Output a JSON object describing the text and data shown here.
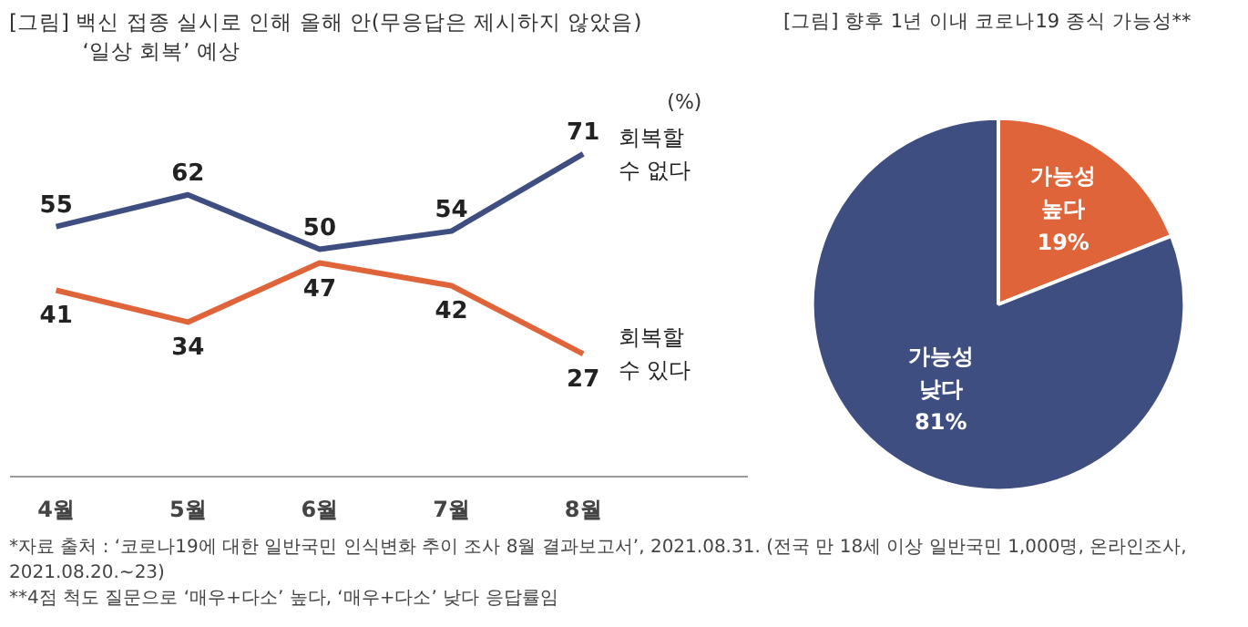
{
  "chart_data": [
    {
      "type": "line",
      "title": "[그림] 백신 접종 실시로 인해 올해 안(무응답은 제시하지 않았음)",
      "subtitle": "‘일상 회복’ 예상",
      "ylabel": "(%)",
      "categories": [
        "4월",
        "5월",
        "6월",
        "7월",
        "8월"
      ],
      "series": [
        {
          "name": "회복할\n수 없다",
          "color": "#3f4e80",
          "values": [
            55,
            62,
            50,
            54,
            71
          ]
        },
        {
          "name": "회복할\n수 있다",
          "color": "#e0643a",
          "values": [
            41,
            34,
            47,
            42,
            27
          ]
        }
      ],
      "tick_labels": "x",
      "grid": false,
      "data_labels": true,
      "line_style": "solid",
      "marker": "none",
      "annotations": [
        "*자료 출처 : ‘코로나19에 대한 일반국민 인식변화 추이 조사 8월 결과보고서’, 2021.08.31. (전국 만 18세 이상 일반국민 1,000명, 온라인조사, 2021.08.20.~23)",
        "**4점 척도 질문으로 ‘매우+다소’ 높다, ‘매우+다소’ 낮다 응답률임"
      ]
    },
    {
      "type": "pie",
      "title": "[그림] 향후 1년 이내 코로나19 종식 가능성**",
      "categories": [
        "가능성\n높다",
        "가능성\n낮다"
      ],
      "values": [
        19,
        81
      ],
      "colors": [
        "#e0643a",
        "#3f4e80"
      ],
      "value_labels": [
        "19%",
        "81%"
      ]
    }
  ]
}
